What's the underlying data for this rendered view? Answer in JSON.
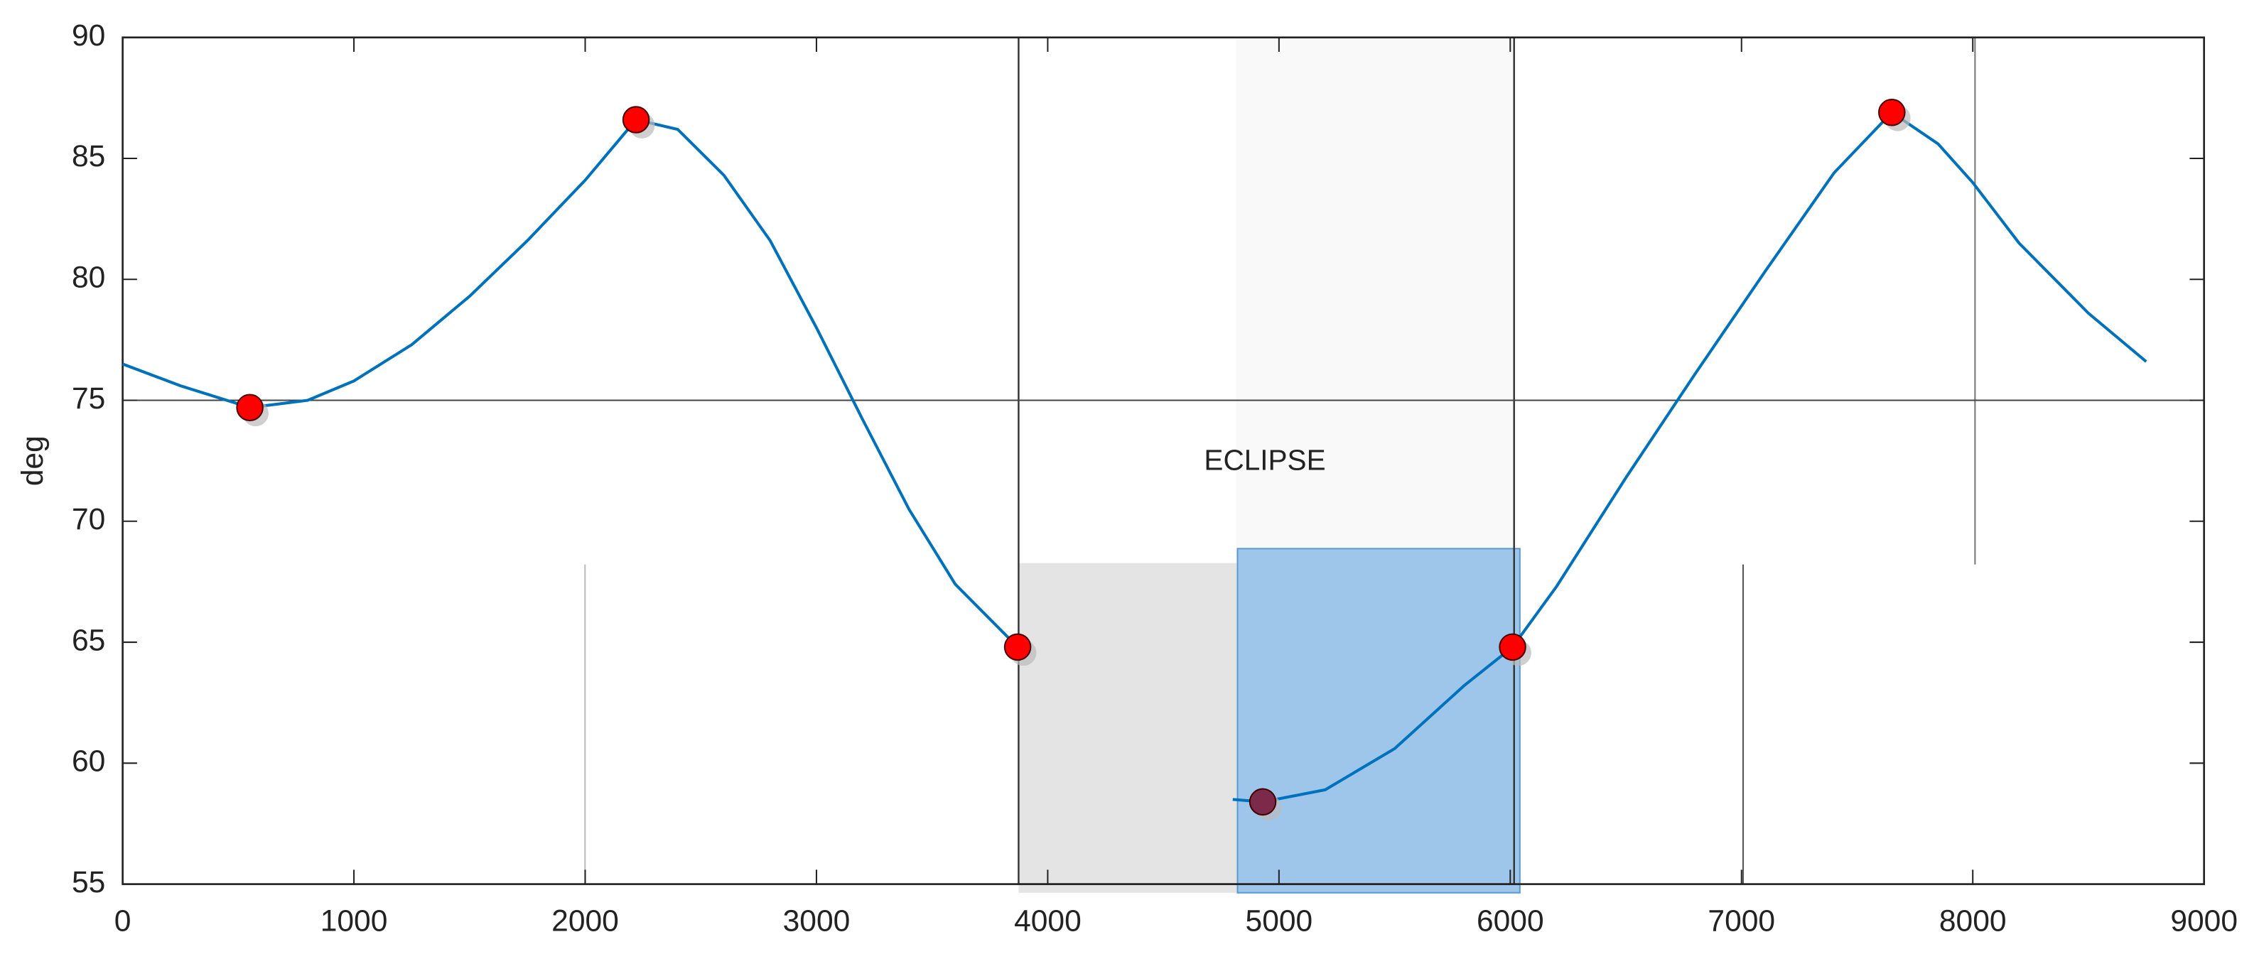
{
  "chart_data": {
    "type": "line",
    "y_label": "deg",
    "annotation": "ECLIPSE",
    "xlim": [
      0,
      9000
    ],
    "xticks": [
      0,
      1000,
      2000,
      3000,
      4000,
      5000,
      6000,
      7000,
      8000,
      9000
    ],
    "ylim": [
      55,
      90
    ],
    "yticks": [
      55,
      60,
      65,
      70,
      75,
      80,
      85,
      90
    ],
    "reference_line": 75,
    "series": [
      {
        "color": "#0072bd",
        "style": "line",
        "x": [
          0,
          250,
          550,
          800,
          1000,
          1250,
          1500,
          1750,
          2000,
          2220,
          2400,
          2600,
          2800,
          3000,
          3200,
          3400,
          3600,
          3870,
          4300,
          4800,
          4930,
          5200,
          5500,
          5800,
          6010,
          6200,
          6500,
          6800,
          7100,
          7400,
          7650,
          7850,
          8000,
          8200,
          8500,
          8750
        ],
        "values": [
          76.5,
          75.6,
          74.7,
          75.0,
          75.8,
          77.3,
          79.3,
          81.6,
          84.1,
          86.6,
          86.2,
          84.3,
          81.6,
          78.0,
          74.2,
          70.5,
          67.4,
          64.8,
          null,
          58.5,
          58.4,
          58.9,
          60.6,
          63.2,
          64.8,
          67.3,
          71.8,
          76.1,
          80.3,
          84.4,
          86.9,
          85.6,
          84.0,
          81.5,
          78.6,
          76.6
        ]
      },
      {
        "color": "#ff0000",
        "style": "marker",
        "x": [
          550,
          2220,
          3870,
          6010,
          7650
        ],
        "values": [
          74.7,
          86.6,
          64.8,
          64.8,
          86.9
        ]
      },
      {
        "color": "#7b2a4a",
        "style": "marker",
        "x": [
          4930
        ],
        "values": [
          58.4
        ]
      }
    ]
  }
}
